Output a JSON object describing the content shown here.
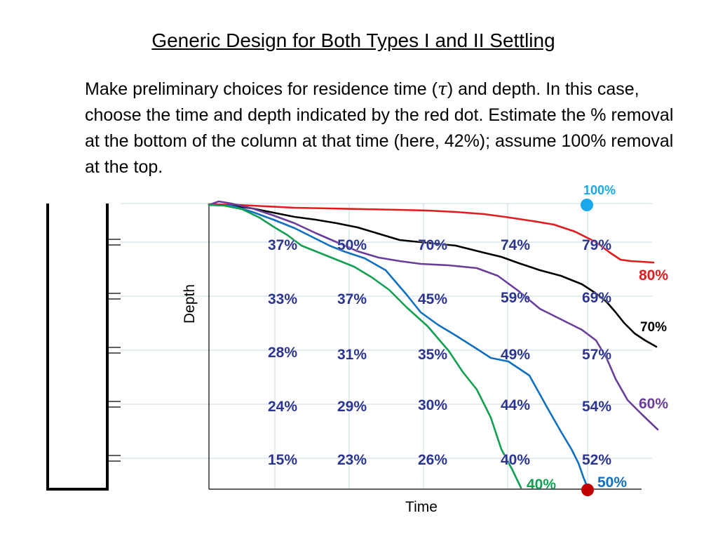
{
  "header": {
    "title": "Generic Design for Both Types I and II Settling",
    "desc_part1": "Make preliminary choices for residence time (",
    "tau": "τ",
    "desc_part2": ") and depth. In this case, choose the time and depth indicated by the red dot. Estimate the % removal at the bottom of the column at that time (here, 42%); assume 100% removal at the top."
  },
  "axes": {
    "x_label": "Time",
    "y_label": "Depth"
  },
  "grid_values": [
    [
      "37%",
      "50%",
      "70%",
      "74%",
      "79%"
    ],
    [
      "33%",
      "37%",
      "45%",
      "59%",
      "69%"
    ],
    [
      "28%",
      "31%",
      "35%",
      "49%",
      "57%"
    ],
    [
      "24%",
      "29%",
      "30%",
      "44%",
      "54%"
    ],
    [
      "15%",
      "23%",
      "26%",
      "40%",
      "52%"
    ]
  ],
  "curve_labels": {
    "c80": "80%",
    "c70": "70%",
    "c60": "60%",
    "c50": "50%",
    "c40": "40%",
    "top": "100%"
  },
  "colors": {
    "curve80": "#e41a1c",
    "curve70": "#000000",
    "curve60": "#6a3d9a",
    "curve50": "#1070c0",
    "curve40": "#10a050",
    "top_dot": "#1aa7ec",
    "bottom_dot": "#c00000",
    "grid_text": "#2b3590"
  }
}
